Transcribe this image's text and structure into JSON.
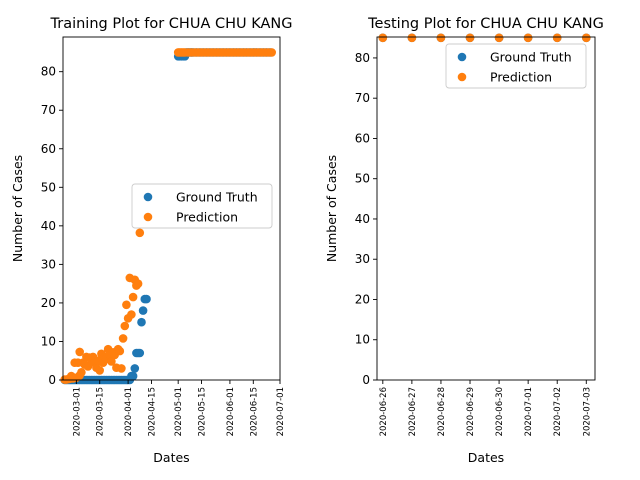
{
  "chart_data": [
    {
      "type": "scatter",
      "title": "Training Plot for CHUA CHU KANG",
      "xlabel": "Dates",
      "ylabel": "Number of Cases",
      "x_axis_type": "date",
      "xlim": [
        "2020-02-22",
        "2020-07-01"
      ],
      "ylim": [
        0,
        89
      ],
      "x_ticks": [
        "2020-03-01",
        "2020-03-15",
        "2020-04-01",
        "2020-04-15",
        "2020-05-01",
        "2020-05-15",
        "2020-06-01",
        "2020-06-15",
        "2020-07-01"
      ],
      "y_ticks": [
        0,
        10,
        20,
        30,
        40,
        50,
        60,
        70,
        80
      ],
      "legend_position": "center-right",
      "grid": false,
      "series": [
        {
          "name": "Ground Truth",
          "color": "#1f77b4",
          "points": [
            {
              "x": "2020-02-23",
              "y": 0
            },
            {
              "x": "2020-02-24",
              "y": 0
            },
            {
              "x": "2020-02-25",
              "y": 0
            },
            {
              "x": "2020-02-26",
              "y": 0
            },
            {
              "x": "2020-02-27",
              "y": 0
            },
            {
              "x": "2020-02-28",
              "y": 0
            },
            {
              "x": "2020-02-29",
              "y": 0
            },
            {
              "x": "2020-03-01",
              "y": 0
            },
            {
              "x": "2020-03-02",
              "y": 0
            },
            {
              "x": "2020-03-03",
              "y": 0
            },
            {
              "x": "2020-03-04",
              "y": 0
            },
            {
              "x": "2020-03-05",
              "y": 0
            },
            {
              "x": "2020-03-06",
              "y": 0
            },
            {
              "x": "2020-03-07",
              "y": 0
            },
            {
              "x": "2020-03-08",
              "y": 0
            },
            {
              "x": "2020-03-09",
              "y": 0
            },
            {
              "x": "2020-03-10",
              "y": 0
            },
            {
              "x": "2020-03-11",
              "y": 0
            },
            {
              "x": "2020-03-12",
              "y": 0
            },
            {
              "x": "2020-03-13",
              "y": 0
            },
            {
              "x": "2020-03-14",
              "y": 0
            },
            {
              "x": "2020-03-15",
              "y": 0
            },
            {
              "x": "2020-03-16",
              "y": 0
            },
            {
              "x": "2020-03-17",
              "y": 0
            },
            {
              "x": "2020-03-18",
              "y": 0
            },
            {
              "x": "2020-03-19",
              "y": 0
            },
            {
              "x": "2020-03-20",
              "y": 0
            },
            {
              "x": "2020-03-21",
              "y": 0
            },
            {
              "x": "2020-03-22",
              "y": 0
            },
            {
              "x": "2020-03-23",
              "y": 0
            },
            {
              "x": "2020-03-24",
              "y": 0
            },
            {
              "x": "2020-03-25",
              "y": 0
            },
            {
              "x": "2020-03-26",
              "y": 0
            },
            {
              "x": "2020-03-27",
              "y": 0
            },
            {
              "x": "2020-03-28",
              "y": 0
            },
            {
              "x": "2020-03-29",
              "y": 0
            },
            {
              "x": "2020-03-30",
              "y": 0
            },
            {
              "x": "2020-03-31",
              "y": 0
            },
            {
              "x": "2020-04-01",
              "y": 0
            },
            {
              "x": "2020-04-02",
              "y": 0
            },
            {
              "x": "2020-04-03",
              "y": 1
            },
            {
              "x": "2020-04-04",
              "y": 1
            },
            {
              "x": "2020-04-05",
              "y": 3
            },
            {
              "x": "2020-04-06",
              "y": 7
            },
            {
              "x": "2020-04-07",
              "y": 7
            },
            {
              "x": "2020-04-08",
              "y": 7
            },
            {
              "x": "2020-04-09",
              "y": 15
            },
            {
              "x": "2020-04-10",
              "y": 18
            },
            {
              "x": "2020-04-11",
              "y": 21
            },
            {
              "x": "2020-04-12",
              "y": 21
            },
            {
              "x": "2020-05-01",
              "y": 84
            },
            {
              "x": "2020-05-02",
              "y": 84
            },
            {
              "x": "2020-05-03",
              "y": 84
            },
            {
              "x": "2020-05-04",
              "y": 84
            },
            {
              "x": "2020-05-05",
              "y": 84
            },
            {
              "x": "2020-05-06",
              "y": 85
            },
            {
              "x": "2020-05-07",
              "y": 85
            },
            {
              "x": "2020-05-08",
              "y": 85
            },
            {
              "x": "2020-05-09",
              "y": 85
            },
            {
              "x": "2020-05-10",
              "y": 85
            },
            {
              "x": "2020-05-12",
              "y": 85
            },
            {
              "x": "2020-05-14",
              "y": 85
            },
            {
              "x": "2020-05-16",
              "y": 85
            },
            {
              "x": "2020-05-18",
              "y": 85
            },
            {
              "x": "2020-05-20",
              "y": 85
            },
            {
              "x": "2020-05-22",
              "y": 85
            },
            {
              "x": "2020-05-24",
              "y": 85
            },
            {
              "x": "2020-05-26",
              "y": 85
            },
            {
              "x": "2020-05-28",
              "y": 85
            },
            {
              "x": "2020-05-30",
              "y": 85
            },
            {
              "x": "2020-06-01",
              "y": 85
            },
            {
              "x": "2020-06-03",
              "y": 85
            },
            {
              "x": "2020-06-05",
              "y": 85
            },
            {
              "x": "2020-06-07",
              "y": 85
            },
            {
              "x": "2020-06-09",
              "y": 85
            },
            {
              "x": "2020-06-11",
              "y": 85
            },
            {
              "x": "2020-06-13",
              "y": 85
            },
            {
              "x": "2020-06-15",
              "y": 85
            },
            {
              "x": "2020-06-17",
              "y": 85
            },
            {
              "x": "2020-06-19",
              "y": 85
            },
            {
              "x": "2020-06-21",
              "y": 85
            },
            {
              "x": "2020-06-23",
              "y": 85
            },
            {
              "x": "2020-06-25",
              "y": 85
            }
          ]
        },
        {
          "name": "Prediction",
          "color": "#ff7f0e",
          "points": [
            {
              "x": "2020-02-23",
              "y": 0.1
            },
            {
              "x": "2020-02-24",
              "y": 0.1
            },
            {
              "x": "2020-02-25",
              "y": 0.2
            },
            {
              "x": "2020-02-26",
              "y": 0.3
            },
            {
              "x": "2020-02-27",
              "y": 1
            },
            {
              "x": "2020-02-28",
              "y": 0.4
            },
            {
              "x": "2020-02-29",
              "y": 4.5
            },
            {
              "x": "2020-03-01",
              "y": 0.6
            },
            {
              "x": "2020-03-02",
              "y": 4.5
            },
            {
              "x": "2020-03-03",
              "y": 7.3
            },
            {
              "x": "2020-03-03",
              "y": 1.2
            },
            {
              "x": "2020-03-04",
              "y": 2
            },
            {
              "x": "2020-03-05",
              "y": 4.5
            },
            {
              "x": "2020-03-06",
              "y": 4
            },
            {
              "x": "2020-03-07",
              "y": 6
            },
            {
              "x": "2020-03-08",
              "y": 3.5
            },
            {
              "x": "2020-03-09",
              "y": 5.8
            },
            {
              "x": "2020-03-10",
              "y": 4.6
            },
            {
              "x": "2020-03-11",
              "y": 6
            },
            {
              "x": "2020-03-12",
              "y": 4.5
            },
            {
              "x": "2020-03-13",
              "y": 3.2
            },
            {
              "x": "2020-03-14",
              "y": 5
            },
            {
              "x": "2020-03-15",
              "y": 2.5
            },
            {
              "x": "2020-03-16",
              "y": 6.8
            },
            {
              "x": "2020-03-17",
              "y": 4.5
            },
            {
              "x": "2020-03-18",
              "y": 6
            },
            {
              "x": "2020-03-19",
              "y": 5.5
            },
            {
              "x": "2020-03-20",
              "y": 8
            },
            {
              "x": "2020-03-21",
              "y": 6.5
            },
            {
              "x": "2020-03-22",
              "y": 4.8
            },
            {
              "x": "2020-03-23",
              "y": 7.2
            },
            {
              "x": "2020-03-24",
              "y": 6.5
            },
            {
              "x": "2020-03-25",
              "y": 3.2
            },
            {
              "x": "2020-03-26",
              "y": 8
            },
            {
              "x": "2020-03-27",
              "y": 7.5
            },
            {
              "x": "2020-03-28",
              "y": 3
            },
            {
              "x": "2020-03-29",
              "y": 10.8
            },
            {
              "x": "2020-03-30",
              "y": 14
            },
            {
              "x": "2020-03-31",
              "y": 19.5
            },
            {
              "x": "2020-04-01",
              "y": 16
            },
            {
              "x": "2020-04-02",
              "y": 26.5
            },
            {
              "x": "2020-04-03",
              "y": 17
            },
            {
              "x": "2020-04-04",
              "y": 21.5
            },
            {
              "x": "2020-04-05",
              "y": 26
            },
            {
              "x": "2020-04-06",
              "y": 24.5
            },
            {
              "x": "2020-04-07",
              "y": 25
            },
            {
              "x": "2020-04-08",
              "y": 38.2
            },
            {
              "x": "2020-05-01",
              "y": 85
            },
            {
              "x": "2020-05-02",
              "y": 85
            },
            {
              "x": "2020-05-03",
              "y": 85
            },
            {
              "x": "2020-05-04",
              "y": 85
            },
            {
              "x": "2020-05-05",
              "y": 85
            },
            {
              "x": "2020-05-07",
              "y": 85
            },
            {
              "x": "2020-05-09",
              "y": 85
            },
            {
              "x": "2020-05-11",
              "y": 85
            },
            {
              "x": "2020-05-13",
              "y": 85
            },
            {
              "x": "2020-05-15",
              "y": 85
            },
            {
              "x": "2020-05-17",
              "y": 85
            },
            {
              "x": "2020-05-19",
              "y": 85
            },
            {
              "x": "2020-05-21",
              "y": 85
            },
            {
              "x": "2020-05-23",
              "y": 85
            },
            {
              "x": "2020-05-25",
              "y": 85
            },
            {
              "x": "2020-05-27",
              "y": 85
            },
            {
              "x": "2020-05-29",
              "y": 85
            },
            {
              "x": "2020-05-31",
              "y": 85
            },
            {
              "x": "2020-06-02",
              "y": 85
            },
            {
              "x": "2020-06-04",
              "y": 85
            },
            {
              "x": "2020-06-06",
              "y": 85
            },
            {
              "x": "2020-06-08",
              "y": 85
            },
            {
              "x": "2020-06-10",
              "y": 85
            },
            {
              "x": "2020-06-12",
              "y": 85
            },
            {
              "x": "2020-06-14",
              "y": 85
            },
            {
              "x": "2020-06-16",
              "y": 85
            },
            {
              "x": "2020-06-18",
              "y": 85
            },
            {
              "x": "2020-06-20",
              "y": 85
            },
            {
              "x": "2020-06-22",
              "y": 85
            },
            {
              "x": "2020-06-24",
              "y": 85
            },
            {
              "x": "2020-06-26",
              "y": 85
            }
          ]
        }
      ]
    },
    {
      "type": "scatter",
      "title": "Testing Plot for CHUA CHU KANG",
      "xlabel": "Dates",
      "ylabel": "Number of Cases",
      "x_axis_type": "date",
      "xlim": [
        "2020-06-25.8",
        "2020-07-03.3"
      ],
      "ylim": [
        0,
        85.2
      ],
      "x_ticks": [
        "2020-06-26",
        "2020-06-27",
        "2020-06-28",
        "2020-06-29",
        "2020-06-30",
        "2020-07-01",
        "2020-07-02",
        "2020-07-03"
      ],
      "y_ticks": [
        0,
        10,
        20,
        30,
        40,
        50,
        60,
        70,
        80
      ],
      "legend_position": "top-right",
      "grid": false,
      "series": [
        {
          "name": "Ground Truth",
          "color": "#1f77b4",
          "points": [
            {
              "x": "2020-06-26",
              "y": 85
            },
            {
              "x": "2020-06-27",
              "y": 85
            },
            {
              "x": "2020-06-28",
              "y": 85
            },
            {
              "x": "2020-06-29",
              "y": 85
            },
            {
              "x": "2020-06-30",
              "y": 85
            },
            {
              "x": "2020-07-01",
              "y": 85
            },
            {
              "x": "2020-07-02",
              "y": 85
            },
            {
              "x": "2020-07-03",
              "y": 85
            }
          ]
        },
        {
          "name": "Prediction",
          "color": "#ff7f0e",
          "points": [
            {
              "x": "2020-06-26",
              "y": 85
            },
            {
              "x": "2020-06-27",
              "y": 85
            },
            {
              "x": "2020-06-28",
              "y": 85
            },
            {
              "x": "2020-06-29",
              "y": 85
            },
            {
              "x": "2020-06-30",
              "y": 85
            },
            {
              "x": "2020-07-01",
              "y": 85
            },
            {
              "x": "2020-07-02",
              "y": 85
            },
            {
              "x": "2020-07-03",
              "y": 85
            }
          ]
        }
      ]
    }
  ]
}
